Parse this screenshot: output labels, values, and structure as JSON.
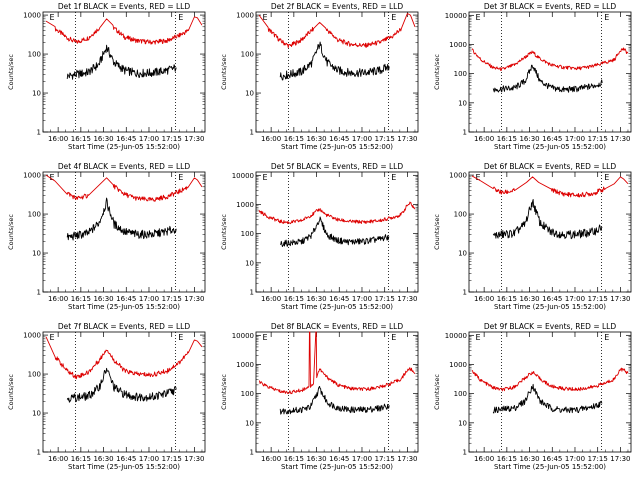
{
  "start_time_label": "Start Time (25-Jun-05 15:52:00)",
  "ylabel": "Counts/sec",
  "x_ticks": [
    "16:00",
    "16:15",
    "16:30",
    "16:45",
    "17:00",
    "17:15",
    "17:30"
  ],
  "x_range_minutes": [
    -2,
    105
  ],
  "marker_glyph": "E",
  "colors": {
    "events": "#000000",
    "lld": "#dd0000",
    "dotted": "#000000"
  },
  "chart_data": [
    {
      "type": "line",
      "title": "Det 1f BLACK = Events, RED = LLD",
      "yticks": [
        "1",
        "10",
        "100",
        "1000"
      ],
      "ylim": [
        1,
        1200
      ],
      "dotted_x": [
        19.5,
        85.5
      ],
      "marker_x": 4,
      "marker2_x": 89,
      "series": [
        {
          "name": "LLD",
          "color": "red",
          "x": [
            0,
            6,
            14,
            20,
            28,
            36,
            40,
            44,
            52,
            60,
            70,
            80,
            88,
            94,
            98,
            100,
            103
          ],
          "y": [
            700,
            450,
            260,
            200,
            260,
            500,
            800,
            500,
            270,
            220,
            200,
            220,
            300,
            400,
            900,
            850,
            550
          ]
        },
        {
          "name": "Events",
          "color": "black",
          "x": [
            14,
            20,
            28,
            35,
            40,
            45,
            52,
            60,
            70,
            80,
            86
          ],
          "y": [
            27,
            30,
            34,
            55,
            150,
            60,
            38,
            32,
            33,
            38,
            45
          ]
        }
      ]
    },
    {
      "type": "line",
      "title": "Det 2f BLACK = Events, RED = LLD",
      "yticks": [
        "1",
        "10",
        "100",
        "1000"
      ],
      "ylim": [
        1,
        1200
      ],
      "dotted_x": [
        19.5,
        85.5
      ],
      "marker_x": 4,
      "marker2_x": 89,
      "series": [
        {
          "name": "LLD",
          "color": "red",
          "x": [
            0,
            6,
            14,
            20,
            28,
            36,
            40,
            44,
            52,
            60,
            70,
            80,
            88,
            94,
            98,
            100,
            103
          ],
          "y": [
            1000,
            450,
            220,
            160,
            230,
            450,
            650,
            450,
            230,
            180,
            165,
            200,
            280,
            450,
            1100,
            1000,
            500
          ]
        },
        {
          "name": "Events",
          "color": "black",
          "x": [
            14,
            20,
            28,
            35,
            40,
            45,
            52,
            60,
            70,
            80,
            86
          ],
          "y": [
            27,
            30,
            35,
            60,
            180,
            60,
            38,
            33,
            33,
            38,
            48
          ]
        }
      ]
    },
    {
      "type": "line",
      "title": "Det 3f BLACK = Events, RED = LLD",
      "yticks": [
        "1",
        "10",
        "100",
        "1000",
        "10000"
      ],
      "ylim": [
        1,
        13000
      ],
      "dotted_x": [
        19.5,
        85.5
      ],
      "marker_x": 4,
      "marker2_x": 89,
      "series": [
        {
          "name": "LLD",
          "color": "red",
          "x": [
            0,
            6,
            14,
            20,
            28,
            36,
            40,
            44,
            52,
            60,
            70,
            80,
            88,
            94,
            98,
            100,
            103
          ],
          "y": [
            650,
            300,
            160,
            140,
            200,
            400,
            550,
            350,
            200,
            165,
            150,
            180,
            240,
            300,
            650,
            700,
            500
          ]
        },
        {
          "name": "Events",
          "color": "black",
          "x": [
            14,
            20,
            28,
            35,
            40,
            45,
            52,
            60,
            70,
            80,
            86
          ],
          "y": [
            28,
            30,
            32,
            55,
            200,
            55,
            33,
            28,
            30,
            38,
            48
          ]
        }
      ]
    },
    {
      "type": "line",
      "title": "Det 4f BLACK = Events, RED = LLD",
      "yticks": [
        "1",
        "10",
        "100",
        "1000"
      ],
      "ylim": [
        1,
        1200
      ],
      "dotted_x": [
        19.5,
        85.5
      ],
      "marker_x": 4,
      "marker2_x": 89,
      "series": [
        {
          "name": "LLD",
          "color": "red",
          "x": [
            0,
            6,
            14,
            20,
            28,
            36,
            40,
            44,
            52,
            60,
            70,
            80,
            88,
            94,
            98,
            100,
            103
          ],
          "y": [
            1000,
            700,
            350,
            250,
            300,
            600,
            850,
            550,
            320,
            250,
            230,
            280,
            380,
            500,
            850,
            750,
            500
          ]
        },
        {
          "name": "Events",
          "color": "black",
          "x": [
            14,
            20,
            28,
            35,
            40,
            45,
            52,
            60,
            70,
            80,
            86
          ],
          "y": [
            25,
            28,
            32,
            60,
            200,
            55,
            35,
            30,
            30,
            36,
            42
          ]
        }
      ]
    },
    {
      "type": "line",
      "title": "Det 5f BLACK = Events, RED = LLD",
      "yticks": [
        "1",
        "10",
        "100",
        "1000",
        "10000"
      ],
      "ylim": [
        1,
        13000
      ],
      "dotted_x": [
        19.5,
        85.5
      ],
      "marker_x": 4,
      "marker2_x": 89,
      "series": [
        {
          "name": "LLD",
          "color": "red",
          "x": [
            0,
            6,
            14,
            20,
            28,
            36,
            40,
            44,
            52,
            60,
            70,
            80,
            88,
            94,
            98,
            100,
            103
          ],
          "y": [
            600,
            380,
            260,
            240,
            280,
            480,
            700,
            450,
            300,
            260,
            250,
            280,
            360,
            450,
            950,
            1100,
            700
          ]
        },
        {
          "name": "Events",
          "color": "black",
          "x": [
            14,
            20,
            28,
            35,
            40,
            45,
            52,
            60,
            70,
            80,
            86
          ],
          "y": [
            45,
            48,
            52,
            90,
            320,
            90,
            58,
            52,
            55,
            65,
            78
          ]
        }
      ]
    },
    {
      "type": "line",
      "title": "Det 6f BLACK = Events, RED = LLD",
      "yticks": [
        "1",
        "10",
        "100",
        "1000"
      ],
      "ylim": [
        1,
        1200
      ],
      "dotted_x": [
        19.5,
        85.5
      ],
      "marker_x": 4,
      "marker2_x": 89,
      "series": [
        {
          "name": "LLD",
          "color": "red",
          "x": [
            0,
            6,
            14,
            20,
            28,
            36,
            40,
            44,
            52,
            60,
            70,
            80,
            88,
            94,
            98,
            100,
            103
          ],
          "y": [
            950,
            700,
            450,
            350,
            400,
            650,
            900,
            650,
            420,
            330,
            300,
            340,
            450,
            600,
            900,
            800,
            600
          ]
        },
        {
          "name": "Events",
          "color": "black",
          "x": [
            14,
            20,
            28,
            35,
            40,
            45,
            52,
            60,
            70,
            80,
            86
          ],
          "y": [
            28,
            30,
            32,
            55,
            210,
            58,
            35,
            30,
            30,
            35,
            45
          ]
        }
      ]
    },
    {
      "type": "line",
      "title": "Det 7f BLACK = Events, RED = LLD",
      "yticks": [
        "1",
        "10",
        "100",
        "1000"
      ],
      "ylim": [
        1,
        1200
      ],
      "dotted_x": [
        19.5,
        85.5
      ],
      "marker_x": 4,
      "marker2_x": 89,
      "series": [
        {
          "name": "LLD",
          "color": "red",
          "x": [
            0,
            6,
            14,
            20,
            28,
            36,
            40,
            44,
            52,
            60,
            70,
            80,
            88,
            94,
            98,
            100,
            103
          ],
          "y": [
            900,
            280,
            120,
            85,
            110,
            250,
            450,
            250,
            120,
            100,
            95,
            120,
            200,
            350,
            750,
            700,
            500
          ]
        },
        {
          "name": "Events",
          "color": "black",
          "x": [
            14,
            20,
            28,
            35,
            40,
            45,
            52,
            60,
            70,
            80,
            86
          ],
          "y": [
            24,
            25,
            27,
            45,
            135,
            45,
            30,
            26,
            26,
            32,
            40
          ]
        }
      ]
    },
    {
      "type": "line",
      "title": "Det 8f BLACK = Events, RED = LLD",
      "yticks": [
        "1",
        "10",
        "100",
        "1000",
        "10000"
      ],
      "ylim": [
        1,
        13000
      ],
      "dotted_x": [
        19.5,
        85.5
      ],
      "marker_x": 4,
      "marker2_x": 89,
      "series": [
        {
          "name": "LLD",
          "color": "red",
          "x": [
            0,
            6,
            14,
            20,
            28,
            33,
            33.3,
            33.6,
            34,
            36,
            37.5,
            37.8,
            38.1,
            40,
            44,
            52,
            60,
            70,
            80,
            88,
            94,
            98,
            100,
            103
          ],
          "y": [
            250,
            170,
            120,
            110,
            130,
            180,
            13000,
            13000,
            180,
            220,
            13000,
            13000,
            400,
            700,
            400,
            200,
            150,
            140,
            170,
            230,
            320,
            650,
            700,
            500
          ]
        },
        {
          "name": "Events",
          "color": "black",
          "x": [
            14,
            20,
            28,
            34,
            40,
            45,
            52,
            60,
            70,
            80,
            86
          ],
          "y": [
            25,
            26,
            28,
            35,
            150,
            50,
            33,
            28,
            28,
            32,
            40
          ]
        }
      ]
    },
    {
      "type": "line",
      "title": "Det 9f BLACK = Events, RED = LLD",
      "yticks": [
        "1",
        "10",
        "100",
        "1000",
        "10000"
      ],
      "ylim": [
        1,
        13000
      ],
      "dotted_x": [
        19.5,
        85.5
      ],
      "marker_x": 4,
      "marker2_x": 89,
      "series": [
        {
          "name": "LLD",
          "color": "red",
          "x": [
            0,
            6,
            14,
            20,
            28,
            36,
            40,
            44,
            52,
            60,
            70,
            80,
            88,
            94,
            98,
            100,
            103
          ],
          "y": [
            600,
            280,
            160,
            135,
            170,
            380,
            550,
            350,
            180,
            150,
            140,
            170,
            230,
            320,
            700,
            650,
            500
          ]
        },
        {
          "name": "Events",
          "color": "black",
          "x": [
            14,
            20,
            28,
            35,
            40,
            45,
            52,
            60,
            70,
            80,
            86
          ],
          "y": [
            27,
            29,
            32,
            55,
            190,
            55,
            32,
            27,
            28,
            36,
            48
          ]
        }
      ]
    }
  ]
}
